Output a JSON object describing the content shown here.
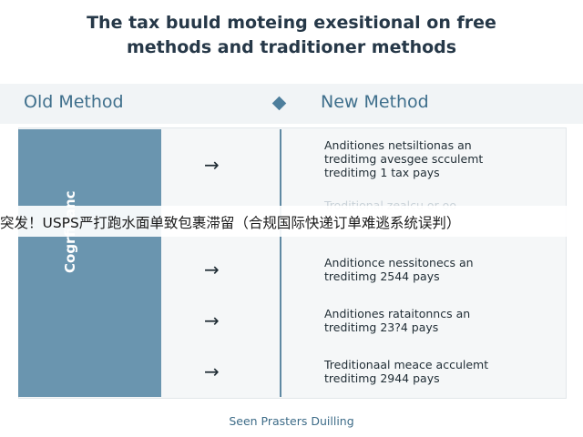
{
  "title": {
    "line1": "The tax buuld moteing exesitional on free",
    "line2": "methods and traditioner methods"
  },
  "columns": {
    "old": "Old Method",
    "new": "New Method"
  },
  "left_bar_label": "Cogrfilianc",
  "arrow_glyph": "→",
  "rows": [
    {
      "lines": [
        "Anditiones netsiltionas an",
        "treditimg avesgee scculemt",
        "treditimg 1 tax pays"
      ]
    },
    {
      "lines": [
        "Anditionce nessitonecs an",
        "treditimg 2544 pays"
      ]
    },
    {
      "lines": [
        "Anditiones rataitonncs an",
        "treditimg 23?4 pays"
      ]
    },
    {
      "lines": [
        "Treditionaal meace acculemt",
        "treditimg 2944 pays"
      ]
    }
  ],
  "ghost_text": "Troditional zealcu or oo",
  "banner": "突发！USPS严打跑水面单致包裹滞留（合规国际快递订单难逃系统误判）",
  "footer": "Seen Prasters Duilling"
}
